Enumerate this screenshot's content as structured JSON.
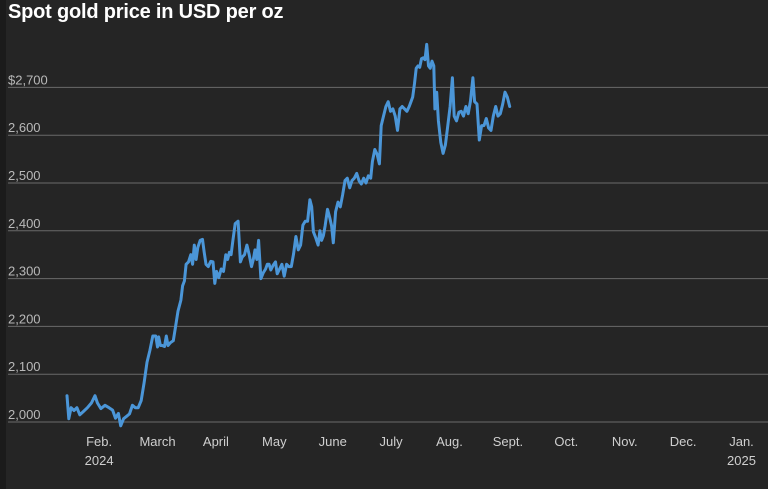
{
  "title": "Spot gold price in USD per oz",
  "colors": {
    "background": "#252525",
    "line": "#4b96d8",
    "grid": "#6a6a6a",
    "text": "#ffffff"
  },
  "chart_data": {
    "type": "line",
    "title": "Spot gold price in USD per oz",
    "xlabel": "",
    "ylabel": "",
    "ylim": [
      2000,
      2790
    ],
    "y_ticks": [
      "2,000",
      "2,100",
      "2,200",
      "2,300",
      "2,400",
      "2,500",
      "2,600",
      "$2,700"
    ],
    "y_tick_values": [
      2000,
      2100,
      2200,
      2300,
      2400,
      2500,
      2600,
      2700
    ],
    "x_ticks": [
      {
        "label": "Feb.",
        "sub": "2024"
      },
      {
        "label": "March",
        "sub": ""
      },
      {
        "label": "April",
        "sub": ""
      },
      {
        "label": "May",
        "sub": ""
      },
      {
        "label": "June",
        "sub": ""
      },
      {
        "label": "July",
        "sub": ""
      },
      {
        "label": "Aug.",
        "sub": ""
      },
      {
        "label": "Sept.",
        "sub": ""
      },
      {
        "label": "Oct.",
        "sub": ""
      },
      {
        "label": "Nov.",
        "sub": ""
      },
      {
        "label": "Dec.",
        "sub": ""
      },
      {
        "label": "Jan.",
        "sub": "2025"
      }
    ],
    "grid": true,
    "series": [
      {
        "values": [
          [
            0.0,
            2055
          ],
          [
            0.03,
            2007
          ],
          [
            0.07,
            2030
          ],
          [
            0.12,
            2024
          ],
          [
            0.17,
            2030
          ],
          [
            0.22,
            2015
          ],
          [
            0.28,
            2022
          ],
          [
            0.35,
            2030
          ],
          [
            0.42,
            2040
          ],
          [
            0.48,
            2055
          ],
          [
            0.52,
            2040
          ],
          [
            0.58,
            2028
          ],
          [
            0.65,
            2035
          ],
          [
            0.72,
            2030
          ],
          [
            0.78,
            2025
          ],
          [
            0.83,
            2008
          ],
          [
            0.88,
            2018
          ],
          [
            0.92,
            1992
          ],
          [
            0.97,
            2007
          ],
          [
            1.02,
            2012
          ],
          [
            1.07,
            2017
          ],
          [
            1.12,
            2035
          ],
          [
            1.17,
            2030
          ],
          [
            1.22,
            2030
          ],
          [
            1.27,
            2045
          ],
          [
            1.32,
            2082
          ],
          [
            1.37,
            2125
          ],
          [
            1.42,
            2150
          ],
          [
            1.47,
            2180
          ],
          [
            1.52,
            2180
          ],
          [
            1.55,
            2157
          ],
          [
            1.57,
            2178
          ],
          [
            1.6,
            2160
          ],
          [
            1.63,
            2160
          ],
          [
            1.67,
            2158
          ],
          [
            1.7,
            2180
          ],
          [
            1.73,
            2160
          ],
          [
            1.77,
            2166
          ],
          [
            1.82,
            2170
          ],
          [
            1.86,
            2200
          ],
          [
            1.9,
            2232
          ],
          [
            1.95,
            2255
          ],
          [
            1.98,
            2285
          ],
          [
            2.01,
            2295
          ],
          [
            2.04,
            2330
          ],
          [
            2.08,
            2335
          ],
          [
            2.12,
            2350
          ],
          [
            2.15,
            2330
          ],
          [
            2.18,
            2370
          ],
          [
            2.21,
            2340
          ],
          [
            2.24,
            2365
          ],
          [
            2.28,
            2380
          ],
          [
            2.32,
            2382
          ],
          [
            2.35,
            2355
          ],
          [
            2.38,
            2330
          ],
          [
            2.42,
            2325
          ],
          [
            2.46,
            2336
          ],
          [
            2.5,
            2335
          ],
          [
            2.53,
            2290
          ],
          [
            2.56,
            2315
          ],
          [
            2.6,
            2302
          ],
          [
            2.64,
            2320
          ],
          [
            2.68,
            2315
          ],
          [
            2.72,
            2350
          ],
          [
            2.75,
            2340
          ],
          [
            2.78,
            2355
          ],
          [
            2.81,
            2350
          ],
          [
            2.84,
            2380
          ],
          [
            2.88,
            2415
          ],
          [
            2.93,
            2420
          ],
          [
            2.97,
            2335
          ],
          [
            3.0,
            2345
          ],
          [
            3.04,
            2350
          ],
          [
            3.08,
            2370
          ],
          [
            3.12,
            2350
          ],
          [
            3.16,
            2325
          ],
          [
            3.19,
            2340
          ],
          [
            3.22,
            2360
          ],
          [
            3.25,
            2340
          ],
          [
            3.28,
            2380
          ],
          [
            3.32,
            2300
          ],
          [
            3.36,
            2312
          ],
          [
            3.4,
            2320
          ],
          [
            3.43,
            2330
          ],
          [
            3.46,
            2330
          ],
          [
            3.49,
            2318
          ],
          [
            3.53,
            2328
          ],
          [
            3.57,
            2335
          ],
          [
            3.6,
            2310
          ],
          [
            3.64,
            2320
          ],
          [
            3.68,
            2330
          ],
          [
            3.72,
            2305
          ],
          [
            3.76,
            2330
          ],
          [
            3.8,
            2325
          ],
          [
            3.84,
            2325
          ],
          [
            3.88,
            2352
          ],
          [
            3.92,
            2388
          ],
          [
            3.96,
            2360
          ],
          [
            4.0,
            2370
          ],
          [
            4.04,
            2412
          ],
          [
            4.08,
            2420
          ],
          [
            4.12,
            2420
          ],
          [
            4.16,
            2465
          ],
          [
            4.19,
            2450
          ],
          [
            4.22,
            2398
          ],
          [
            4.26,
            2385
          ],
          [
            4.3,
            2370
          ],
          [
            4.33,
            2400
          ],
          [
            4.36,
            2380
          ],
          [
            4.39,
            2390
          ],
          [
            4.42,
            2410
          ],
          [
            4.46,
            2445
          ],
          [
            4.5,
            2427
          ],
          [
            4.53,
            2410
          ],
          [
            4.56,
            2375
          ],
          [
            4.6,
            2440
          ],
          [
            4.64,
            2460
          ],
          [
            4.68,
            2450
          ],
          [
            4.72,
            2475
          ],
          [
            4.76,
            2505
          ],
          [
            4.8,
            2510
          ],
          [
            4.84,
            2490
          ],
          [
            4.88,
            2505
          ],
          [
            4.92,
            2510
          ],
          [
            4.96,
            2520
          ],
          [
            5.0,
            2505
          ],
          [
            5.04,
            2498
          ],
          [
            5.08,
            2510
          ],
          [
            5.12,
            2500
          ],
          [
            5.16,
            2515
          ],
          [
            5.2,
            2510
          ],
          [
            5.23,
            2545
          ],
          [
            5.27,
            2570
          ],
          [
            5.31,
            2560
          ],
          [
            5.35,
            2540
          ],
          [
            5.38,
            2620
          ],
          [
            5.42,
            2640
          ],
          [
            5.46,
            2660
          ],
          [
            5.5,
            2670
          ],
          [
            5.54,
            2650
          ],
          [
            5.58,
            2655
          ],
          [
            5.62,
            2640
          ],
          [
            5.66,
            2610
          ],
          [
            5.7,
            2655
          ],
          [
            5.74,
            2660
          ],
          [
            5.78,
            2655
          ],
          [
            5.82,
            2650
          ],
          [
            5.86,
            2660
          ],
          [
            5.89,
            2670
          ],
          [
            5.92,
            2680
          ],
          [
            5.95,
            2708
          ],
          [
            5.98,
            2740
          ],
          [
            6.01,
            2745
          ],
          [
            6.04,
            2742
          ],
          [
            6.07,
            2760
          ],
          [
            6.1,
            2762
          ],
          [
            6.13,
            2758
          ],
          [
            6.16,
            2790
          ],
          [
            6.19,
            2745
          ],
          [
            6.22,
            2740
          ],
          [
            6.25,
            2755
          ],
          [
            6.28,
            2745
          ],
          [
            6.3,
            2655
          ],
          [
            6.33,
            2690
          ],
          [
            6.36,
            2630
          ],
          [
            6.4,
            2585
          ],
          [
            6.44,
            2562
          ],
          [
            6.48,
            2580
          ],
          [
            6.52,
            2620
          ],
          [
            6.56,
            2660
          ],
          [
            6.6,
            2720
          ],
          [
            6.63,
            2640
          ],
          [
            6.67,
            2630
          ],
          [
            6.71,
            2648
          ],
          [
            6.75,
            2650
          ],
          [
            6.79,
            2640
          ],
          [
            6.83,
            2660
          ],
          [
            6.87,
            2645
          ],
          [
            6.91,
            2672
          ],
          [
            6.95,
            2720
          ],
          [
            6.98,
            2670
          ],
          [
            7.02,
            2665
          ],
          [
            7.06,
            2590
          ],
          [
            7.1,
            2620
          ],
          [
            7.14,
            2620
          ],
          [
            7.18,
            2635
          ],
          [
            7.22,
            2615
          ],
          [
            7.26,
            2610
          ],
          [
            7.3,
            2640
          ],
          [
            7.34,
            2660
          ],
          [
            7.38,
            2640
          ],
          [
            7.42,
            2645
          ],
          [
            7.46,
            2665
          ],
          [
            7.5,
            2690
          ],
          [
            7.54,
            2680
          ],
          [
            7.58,
            2660
          ]
        ]
      }
    ]
  }
}
